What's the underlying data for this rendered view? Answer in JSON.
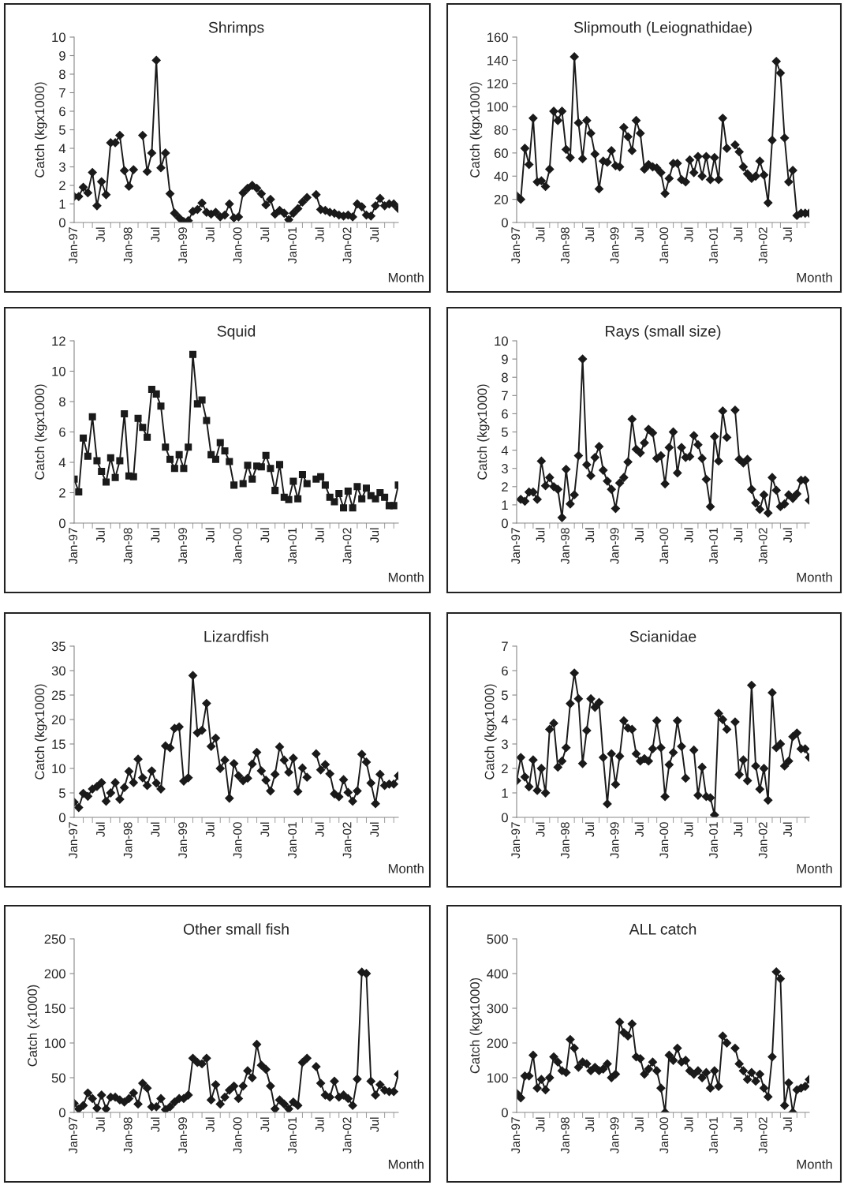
{
  "chart_data": [
    {
      "type": "line",
      "title": "Shrimps",
      "ylabel": "Catch (kgx1000)",
      "xlabel": "Month",
      "marker": "diamond",
      "line_style": "solid",
      "ylim": [
        0,
        10
      ],
      "yticks": [
        0,
        1,
        2,
        3,
        4,
        5,
        6,
        7,
        8,
        9,
        10
      ],
      "categories": [
        "Jan-97",
        null,
        null,
        null,
        null,
        null,
        "Jul",
        null,
        null,
        null,
        null,
        null,
        "Jan-98",
        null,
        null,
        null,
        null,
        null,
        "Jul",
        null,
        null,
        null,
        null,
        null,
        "Jan-99",
        null,
        null,
        null,
        null,
        null,
        "Jul",
        null,
        null,
        null,
        null,
        null,
        "Jan-00",
        null,
        null,
        null,
        null,
        null,
        "Jul",
        null,
        null,
        null,
        null,
        null,
        "Jan-01",
        null,
        null,
        null,
        null,
        null,
        "Jul",
        null,
        null,
        null,
        null,
        null,
        "Jan-02",
        null,
        null,
        null,
        null,
        null,
        "Jul",
        null,
        null,
        null,
        null,
        null
      ],
      "series": [
        {
          "color": "#1a1a1a",
          "values": [
            1.4,
            1.4,
            1.9,
            1.6,
            2.7,
            0.9,
            2.2,
            1.5,
            4.3,
            4.3,
            4.7,
            2.8,
            1.95,
            2.85,
            null,
            4.7,
            2.75,
            3.75,
            8.75,
            2.95,
            3.75,
            1.55,
            0.5,
            0.25,
            0.05,
            0.1,
            0.6,
            0.7,
            1.05,
            0.55,
            0.45,
            0.55,
            0.3,
            0.4,
            1.0,
            0.25,
            0.3,
            1.6,
            1.85,
            2.0,
            1.85,
            1.55,
            0.95,
            1.25,
            0.45,
            0.65,
            0.5,
            0.15,
            0.5,
            0.75,
            1.1,
            1.35,
            null,
            1.5,
            0.7,
            0.65,
            0.55,
            0.5,
            0.4,
            0.35,
            0.4,
            0.3,
            1.0,
            0.85,
            0.4,
            0.35,
            0.9,
            1.3,
            0.9,
            1.0,
            1.0,
            0.75
          ]
        }
      ]
    },
    {
      "type": "line",
      "title": "Slipmouth (Leiognathidae)",
      "ylabel": "Catch (kgx1000)",
      "xlabel": "Month",
      "marker": "diamond",
      "line_style": "solid",
      "ylim": [
        0,
        160
      ],
      "yticks": [
        0,
        20,
        40,
        60,
        80,
        100,
        120,
        140,
        160
      ],
      "categories": [
        "Jan-97",
        null,
        null,
        null,
        null,
        null,
        "Jul",
        null,
        null,
        null,
        null,
        null,
        "Jan-98",
        null,
        null,
        null,
        null,
        null,
        "Jul",
        null,
        null,
        null,
        null,
        null,
        "Jan-99",
        null,
        null,
        null,
        null,
        null,
        "Jul",
        null,
        null,
        null,
        null,
        null,
        "Jan-00",
        null,
        null,
        null,
        null,
        null,
        "Jul",
        null,
        null,
        null,
        null,
        null,
        "Jan-01",
        null,
        null,
        null,
        null,
        null,
        "Jul",
        null,
        null,
        null,
        null,
        null,
        "Jan-02",
        null,
        null,
        null,
        null,
        null,
        "Jul",
        null,
        null,
        null,
        null,
        null
      ],
      "series": [
        {
          "color": "#1a1a1a",
          "values": [
            23,
            20,
            64,
            50,
            90,
            35,
            36,
            31,
            46,
            96,
            88,
            96,
            63,
            56,
            143,
            86,
            55,
            88,
            77,
            59,
            29,
            53,
            52,
            62,
            49,
            48,
            82,
            74,
            62,
            88,
            77,
            46,
            50,
            48,
            47,
            43,
            25,
            38,
            51,
            51,
            37,
            35,
            54,
            43,
            57,
            40,
            57,
            37,
            56,
            37,
            90,
            64,
            null,
            67,
            61,
            48,
            42,
            38,
            40,
            53,
            41,
            17,
            71,
            139,
            129,
            73,
            35,
            45,
            6,
            8,
            8,
            8
          ]
        }
      ]
    },
    {
      "type": "line",
      "title": "Squid",
      "ylabel": "Catch (kgx1000)",
      "xlabel": "Month",
      "marker": "square",
      "line_style": "solid",
      "ylim": [
        0,
        12
      ],
      "yticks": [
        0,
        2,
        4,
        6,
        8,
        10,
        12
      ],
      "categories": [
        "Jan-97",
        null,
        null,
        null,
        null,
        null,
        "Jul",
        null,
        null,
        null,
        null,
        null,
        "Jan-98",
        null,
        null,
        null,
        null,
        null,
        "Jul",
        null,
        null,
        null,
        null,
        null,
        "Jan-99",
        null,
        null,
        null,
        null,
        null,
        "Jul",
        null,
        null,
        null,
        null,
        null,
        "Jan-00",
        null,
        null,
        null,
        null,
        null,
        "Jul",
        null,
        null,
        null,
        null,
        null,
        "Jan-01",
        null,
        null,
        null,
        null,
        null,
        "Jul",
        null,
        null,
        null,
        null,
        null,
        "Jan-02",
        null,
        null,
        null,
        null,
        null,
        "Jul",
        null,
        null,
        null,
        null,
        null
      ],
      "series": [
        {
          "color": "#1a1a1a",
          "values": [
            2.9,
            2.05,
            5.6,
            4.4,
            7.0,
            4.1,
            3.4,
            2.7,
            4.3,
            3.0,
            4.1,
            7.2,
            3.1,
            3.05,
            6.9,
            6.3,
            5.65,
            8.8,
            8.5,
            7.7,
            5.0,
            4.2,
            3.6,
            4.5,
            3.6,
            5.0,
            11.1,
            7.85,
            8.1,
            6.75,
            4.5,
            4.2,
            5.3,
            4.75,
            4.05,
            2.5,
            null,
            2.6,
            3.8,
            2.9,
            3.75,
            3.7,
            4.45,
            3.6,
            2.15,
            3.85,
            1.7,
            1.55,
            2.75,
            1.6,
            3.2,
            2.6,
            null,
            2.9,
            3.05,
            2.5,
            1.7,
            1.4,
            1.95,
            1.0,
            2.1,
            1.0,
            2.4,
            1.6,
            2.3,
            1.8,
            1.6,
            2.0,
            1.7,
            1.15,
            1.15,
            2.5
          ]
        }
      ]
    },
    {
      "type": "line",
      "title": "Rays (small size)",
      "ylabel": "Catch (kgx1000)",
      "xlabel": "Month",
      "marker": "diamond",
      "line_style": "solid",
      "ylim": [
        0,
        10
      ],
      "yticks": [
        0,
        1,
        2,
        3,
        4,
        5,
        6,
        7,
        8,
        9,
        10
      ],
      "categories": [
        "Jan-97",
        null,
        null,
        null,
        null,
        null,
        "Jul",
        null,
        null,
        null,
        null,
        null,
        "Jan-98",
        null,
        null,
        null,
        null,
        null,
        "Jul",
        null,
        null,
        null,
        null,
        null,
        "Jan-99",
        null,
        null,
        null,
        null,
        null,
        "Jul",
        null,
        null,
        null,
        null,
        null,
        "Jan-00",
        null,
        null,
        null,
        null,
        null,
        "Jul",
        null,
        null,
        null,
        null,
        null,
        "Jan-01",
        null,
        null,
        null,
        null,
        null,
        "Jul",
        null,
        null,
        null,
        null,
        null,
        "Jan-02",
        null,
        null,
        null,
        null,
        null,
        "Jul",
        null,
        null,
        null,
        null,
        null
      ],
      "series": [
        {
          "color": "#1a1a1a",
          "values": [
            null,
            1.3,
            1.2,
            1.7,
            1.7,
            1.3,
            3.4,
            2.05,
            2.5,
            2.0,
            1.85,
            0.3,
            2.95,
            1.05,
            1.55,
            3.7,
            9.0,
            3.2,
            2.6,
            3.6,
            4.2,
            2.9,
            2.3,
            1.85,
            0.8,
            2.2,
            2.5,
            3.35,
            5.7,
            4.05,
            3.85,
            4.4,
            5.15,
            4.95,
            3.55,
            3.7,
            2.15,
            4.15,
            5.0,
            2.75,
            4.15,
            3.6,
            3.65,
            4.8,
            4.3,
            3.55,
            2.4,
            0.9,
            4.75,
            3.4,
            6.15,
            4.7,
            null,
            6.2,
            3.5,
            3.3,
            3.5,
            1.85,
            1.1,
            0.75,
            1.55,
            0.55,
            2.5,
            1.8,
            0.9,
            1.05,
            1.55,
            1.35,
            1.6,
            2.35,
            2.35,
            1.25
          ]
        }
      ]
    },
    {
      "type": "line",
      "title": "Lizardfish",
      "ylabel": "Catch (kgx1000)",
      "xlabel": "Month",
      "marker": "diamond",
      "line_style": "solid",
      "ylim": [
        0,
        35
      ],
      "yticks": [
        0,
        5,
        10,
        15,
        20,
        25,
        30,
        35
      ],
      "categories": [
        "Jan-97",
        null,
        null,
        null,
        null,
        null,
        "Jul",
        null,
        null,
        null,
        null,
        null,
        "Jan-98",
        null,
        null,
        null,
        null,
        null,
        "Jul",
        null,
        null,
        null,
        null,
        null,
        "Jan-99",
        null,
        null,
        null,
        null,
        null,
        "Jul",
        null,
        null,
        null,
        null,
        null,
        "Jan-00",
        null,
        null,
        null,
        null,
        null,
        "Jul",
        null,
        null,
        null,
        null,
        null,
        "Jan-01",
        null,
        null,
        null,
        null,
        null,
        "Jul",
        null,
        null,
        null,
        null,
        null,
        "Jan-02",
        null,
        null,
        null,
        null,
        null,
        "Jul",
        null,
        null,
        null,
        null,
        null
      ],
      "series": [
        {
          "color": "#1a1a1a",
          "values": [
            3.1,
            2.0,
            4.9,
            4.3,
            5.8,
            6.3,
            7.1,
            3.3,
            5.0,
            7.1,
            3.7,
            6.1,
            9.4,
            7.1,
            11.9,
            8.1,
            6.5,
            9.5,
            7.0,
            5.8,
            14.6,
            14.2,
            18.2,
            18.5,
            7.4,
            8.1,
            29.0,
            17.3,
            17.8,
            23.3,
            14.5,
            16.2,
            10.0,
            11.7,
            3.9,
            11.0,
            8.5,
            7.5,
            8.0,
            10.9,
            13.3,
            9.5,
            7.6,
            5.4,
            8.8,
            14.4,
            11.7,
            9.2,
            12.1,
            5.3,
            10.1,
            8.2,
            null,
            13.0,
            9.7,
            10.8,
            8.9,
            4.8,
            4.2,
            7.7,
            5.1,
            3.3,
            5.4,
            12.9,
            11.3,
            7.0,
            2.8,
            8.8,
            6.5,
            6.8,
            6.8,
            8.5
          ]
        }
      ]
    },
    {
      "type": "line",
      "title": "Scianidae",
      "ylabel": "Catch (kgx1000)",
      "xlabel": "Month",
      "marker": "diamond",
      "line_style": "solid",
      "ylim": [
        0,
        7
      ],
      "yticks": [
        0,
        1,
        2,
        3,
        4,
        5,
        6,
        7
      ],
      "categories": [
        "Jan-97",
        null,
        null,
        null,
        null,
        null,
        "Jul",
        null,
        null,
        null,
        null,
        null,
        "Jan-98",
        null,
        null,
        null,
        null,
        null,
        "Jul",
        null,
        null,
        null,
        null,
        null,
        "Jan-99",
        null,
        null,
        null,
        null,
        null,
        "Jul",
        null,
        null,
        null,
        null,
        null,
        "Jan-00",
        null,
        null,
        null,
        null,
        null,
        "Jul",
        null,
        null,
        null,
        null,
        null,
        "Jan-01",
        null,
        null,
        null,
        null,
        null,
        "Jul",
        null,
        null,
        null,
        null,
        null,
        "Jan-02",
        null,
        null,
        null,
        null,
        null,
        "Jul",
        null,
        null,
        null,
        null,
        null
      ],
      "series": [
        {
          "color": "#1a1a1a",
          "values": [
            1.5,
            2.45,
            1.65,
            1.25,
            2.35,
            1.1,
            2.0,
            1.0,
            3.6,
            3.85,
            2.05,
            2.3,
            2.85,
            4.65,
            5.9,
            4.85,
            2.2,
            3.55,
            4.85,
            4.5,
            4.7,
            2.45,
            0.55,
            2.6,
            1.35,
            2.5,
            3.95,
            3.65,
            3.6,
            2.6,
            2.3,
            2.4,
            2.3,
            2.8,
            3.95,
            2.85,
            0.85,
            2.15,
            2.65,
            3.95,
            2.9,
            1.6,
            null,
            2.75,
            0.9,
            2.05,
            0.85,
            0.8,
            0.1,
            4.25,
            4.0,
            3.6,
            null,
            3.9,
            1.75,
            2.35,
            1.5,
            5.4,
            2.1,
            1.15,
            2.0,
            0.7,
            5.1,
            2.85,
            3.0,
            2.1,
            2.3,
            3.3,
            3.45,
            2.8,
            2.8,
            2.45
          ]
        }
      ]
    },
    {
      "type": "line",
      "title": "Other small fish",
      "ylabel": "Catch (x1000)",
      "xlabel": "Month",
      "marker": "diamond",
      "line_style": "solid",
      "ylim": [
        0,
        250
      ],
      "yticks": [
        0,
        50,
        100,
        150,
        200,
        250
      ],
      "categories": [
        "Jan-97",
        null,
        null,
        null,
        null,
        null,
        "Jul",
        null,
        null,
        null,
        null,
        null,
        "Jan-98",
        null,
        null,
        null,
        null,
        null,
        "Jul",
        null,
        null,
        null,
        null,
        null,
        "Jan-99",
        null,
        null,
        null,
        null,
        null,
        "Jul",
        null,
        null,
        null,
        null,
        null,
        "Jan-00",
        null,
        null,
        null,
        null,
        null,
        "Jul",
        null,
        null,
        null,
        null,
        null,
        "Jan-01",
        null,
        null,
        null,
        null,
        null,
        "Jul",
        null,
        null,
        null,
        null,
        null,
        "Jan-02",
        null,
        null,
        null,
        null,
        null,
        "Jul",
        null,
        null,
        null,
        null,
        null
      ],
      "series": [
        {
          "color": "#1a1a1a",
          "values": [
            13,
            5,
            10,
            28,
            20,
            6,
            25,
            5,
            22,
            22,
            18,
            15,
            20,
            28,
            12,
            42,
            35,
            8,
            8,
            20,
            4,
            8,
            15,
            20,
            20,
            25,
            78,
            72,
            70,
            78,
            18,
            40,
            12,
            22,
            32,
            38,
            20,
            38,
            60,
            50,
            98,
            68,
            62,
            38,
            5,
            18,
            12,
            5,
            15,
            10,
            72,
            78,
            null,
            66,
            42,
            25,
            22,
            45,
            22,
            25,
            20,
            10,
            48,
            202,
            200,
            45,
            25,
            40,
            32,
            30,
            30,
            55
          ]
        }
      ]
    },
    {
      "type": "line",
      "title": "ALL catch",
      "ylabel": "Catch (kgx1000)",
      "xlabel": "Month",
      "marker": "diamond",
      "line_style": "solid",
      "ylim": [
        0,
        500
      ],
      "yticks": [
        0,
        100,
        200,
        300,
        400,
        500
      ],
      "categories": [
        "Jan-97",
        null,
        null,
        null,
        null,
        null,
        "Jul",
        null,
        null,
        null,
        null,
        null,
        "Jan-98",
        null,
        null,
        null,
        null,
        null,
        "Jul",
        null,
        null,
        null,
        null,
        null,
        "Jan-99",
        null,
        null,
        null,
        null,
        null,
        "Jul",
        null,
        null,
        null,
        null,
        null,
        "Jan-00",
        null,
        null,
        null,
        null,
        null,
        "Jul",
        null,
        null,
        null,
        null,
        null,
        "Jan-01",
        null,
        null,
        null,
        null,
        null,
        "Jul",
        null,
        null,
        null,
        null,
        null,
        "Jan-02",
        null,
        null,
        null,
        null,
        null,
        "Jul",
        null,
        null,
        null,
        null,
        null
      ],
      "series": [
        {
          "color": "#1a1a1a",
          "values": [
            55,
            42,
            105,
            105,
            165,
            70,
            95,
            65,
            100,
            160,
            145,
            120,
            115,
            210,
            185,
            130,
            145,
            140,
            120,
            130,
            120,
            125,
            140,
            100,
            110,
            260,
            230,
            220,
            255,
            160,
            155,
            110,
            125,
            145,
            120,
            70,
            0,
            165,
            150,
            185,
            145,
            150,
            120,
            110,
            120,
            100,
            115,
            70,
            120,
            75,
            220,
            200,
            null,
            185,
            140,
            120,
            95,
            115,
            90,
            110,
            70,
            45,
            160,
            405,
            385,
            20,
            85,
            0,
            65,
            70,
            75,
            95
          ]
        }
      ]
    }
  ]
}
